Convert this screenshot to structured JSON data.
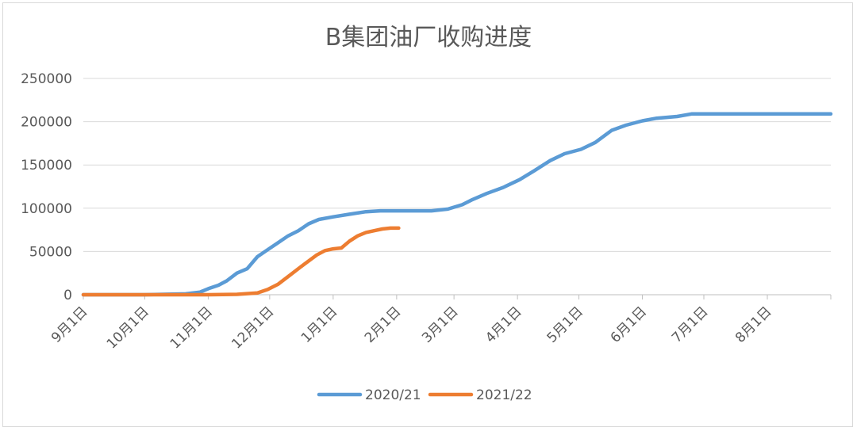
{
  "chart_data": {
    "type": "line",
    "title": "B集团油厂收购进度",
    "xlabel": "",
    "ylabel": "",
    "ylim": [
      0,
      250000
    ],
    "yticks": [
      0,
      50000,
      100000,
      150000,
      200000,
      250000
    ],
    "grid": true,
    "legend": "bottom",
    "x_ticks": [
      "9月1日",
      "10月1日",
      "11月1日",
      "12月1日",
      "1月1日",
      "2月1日",
      "3月1日",
      "4月1日",
      "5月1日",
      "6月1日",
      "7月1日",
      "8月1日"
    ],
    "x_unit": "days from 9月1日",
    "series": [
      {
        "name": "2020/21",
        "color": "#5b9bd5",
        "x": [
          0,
          30,
          50,
          57,
          61,
          66,
          70,
          75,
          80,
          85,
          90,
          95,
          100,
          105,
          110,
          115,
          122,
          130,
          138,
          145,
          150,
          160,
          170,
          178,
          185,
          190,
          197,
          205,
          213,
          220,
          228,
          235,
          243,
          250,
          258,
          265,
          273,
          280,
          290,
          297,
          302,
          334,
          365
        ],
        "values": [
          0,
          0,
          1000,
          3000,
          7000,
          11000,
          16000,
          25000,
          30000,
          44000,
          52000,
          60000,
          68000,
          74000,
          82000,
          87000,
          90000,
          93000,
          96000,
          97000,
          97000,
          97000,
          97000,
          99000,
          104000,
          110000,
          117000,
          124000,
          133000,
          143000,
          155000,
          163000,
          168000,
          176000,
          190000,
          196000,
          201000,
          204000,
          206000,
          209000,
          209000,
          209000,
          209000
        ]
      },
      {
        "name": "2021/22",
        "color": "#ed7d31",
        "x": [
          0,
          30,
          61,
          75,
          85,
          90,
          95,
          100,
          106,
          110,
          114,
          118,
          122,
          126,
          130,
          134,
          138,
          142,
          146,
          150,
          154
        ],
        "values": [
          0,
          0,
          0,
          500,
          2000,
          6000,
          12000,
          21000,
          32000,
          39000,
          46000,
          51000,
          53000,
          54000,
          62000,
          68000,
          72000,
          74000,
          76000,
          77000,
          77000
        ]
      }
    ]
  }
}
